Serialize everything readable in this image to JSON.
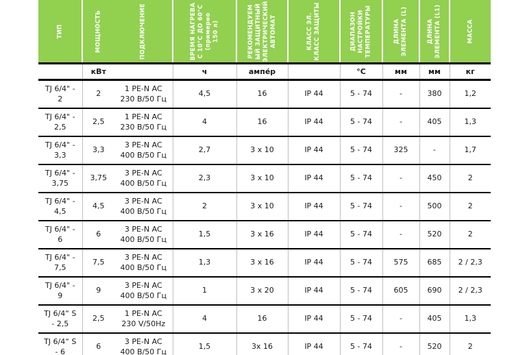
{
  "table": {
    "columns": [
      {
        "label": "ТИП",
        "unit": ""
      },
      {
        "label": "МОЩНОСТЬ",
        "unit": "кВт"
      },
      {
        "label": "ПОДКЛЮЧЕНИЕ",
        "unit": ""
      },
      {
        "label": "ВРЕМЯ НАГРЕВА\nС 10°С ДО 60°С\n(примерно\n150 л)",
        "unit": "ч"
      },
      {
        "label": "РЕКОМЕНДУЕМ\nЫЙ ЗАЩИТНЫЙ\nЭЛЕКТРИЧЕСКИЙ\nАВТОМАТ",
        "unit": "ампе́р"
      },
      {
        "label": "КЛАСС ЭЛ.\nКЛАСС ЗАЩИТЫ",
        "unit": ""
      },
      {
        "label": "ДИАПАЗОН\nНАСТРОЙКИ\nТЕМПЕРАТУРЫ",
        "unit": "°С"
      },
      {
        "label": "ДЛИНА\nЭЛЕМЕНТА (L)",
        "unit": "мм"
      },
      {
        "label": "ДЛИНА\nЭЛЕМЕНТА (L1)",
        "unit": "мм"
      },
      {
        "label": "МАССА",
        "unit": "кг"
      }
    ],
    "rows": [
      [
        "TJ 6/4\" -\n2",
        "2",
        "1 PE-N AC\n230 В/50 Гц",
        "4,5",
        "16",
        "IP 44",
        "5 - 74",
        "-",
        "380",
        "1,2"
      ],
      [
        "TJ 6/4\" -\n2,5",
        "2,5",
        "1 PE-N AC\n230 В/50 Гц",
        "4",
        "16",
        "IP 44",
        "5 - 74",
        "-",
        "405",
        "1,3"
      ],
      [
        "TJ 6/4\" -\n3,3",
        "3,3",
        "3 PE-N AC\n400 В/50 Гц",
        "2,7",
        "3 x 10",
        "IP 44",
        "5 - 74",
        "325",
        "-",
        "1,7"
      ],
      [
        "TJ 6/4\" -\n3,75",
        "3,75",
        "3 PE-N AC\n400 В/50 Гц",
        "2,3",
        "3 x 10",
        "IP 44",
        "5 - 74",
        "-",
        "450",
        "2"
      ],
      [
        "TJ 6/4\" -\n4,5",
        "4,5",
        "3 PE-N AC\n400 В/50 Гц",
        "2",
        "3 x 10",
        "IP 44",
        "5 - 74",
        "-",
        "500",
        "2"
      ],
      [
        "TJ 6/4\" -\n6",
        "6",
        "3 PE-N AC\n400 В/50 Гц",
        "1,5",
        "3 x 16",
        "IP 44",
        "5 - 74",
        "-",
        "520",
        "2"
      ],
      [
        "TJ 6/4\" -\n7,5",
        "7,5",
        "3 PE-N AC\n400 В/50 Гц",
        "1,3",
        "3 x 16",
        "IP 44",
        "5 - 74",
        "575",
        "685",
        "2 / 2,3"
      ],
      [
        "TJ 6/4\" -\n9",
        "9",
        "3 PE-N AC\n400 В/50 Гц",
        "1",
        "3 x 20",
        "IP 44",
        "5 - 74",
        "605",
        "690",
        "2 / 2,3"
      ],
      [
        "TJ 6/4“ S\n- 2,5",
        "2,5",
        "1 PE-N AC\n230 V/50Hz",
        "4",
        "16",
        "IP 44",
        "5 - 74",
        "-",
        "405",
        "1,3"
      ],
      [
        "TJ 6/4“ S\n- 6",
        "6",
        "3 PE-N AC\n400 В/50 Гц",
        "1,5",
        "3x 16",
        "IP 44",
        "5 - 74",
        "-",
        "520",
        "2"
      ]
    ]
  },
  "colors": {
    "header_green": "#92d050",
    "header_text": "#ffffff",
    "rule_black": "#000000",
    "grid_gray": "#bfbfbf"
  }
}
